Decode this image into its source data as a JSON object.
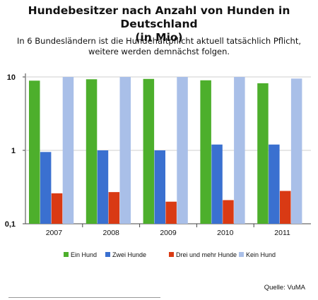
{
  "header": {
    "title_line1": "Hundebesitzer nach Anzahl von Hunden in Deutschland",
    "title_line2": "(in Mio)",
    "subtitle_line1": "In 6 Bundesländern ist die Hundehaftpflicht aktuell tatsächlich Pflicht,",
    "subtitle_line2": "weitere werden demnächst folgen."
  },
  "footer": {
    "source": "Quelle: VuMA"
  },
  "chart_data": {
    "type": "bar",
    "title": "Hundebesitzer nach Anzahl von Hunden in Deutschland (in Mio)",
    "categories": [
      "2007",
      "2008",
      "2009",
      "2010",
      "2011"
    ],
    "yscale": "log",
    "ylim": [
      0.1,
      10
    ],
    "yticks": [
      {
        "value": 10,
        "label": "10"
      },
      {
        "value": 1,
        "label": "1"
      },
      {
        "value": 0.1,
        "label": "0,1"
      }
    ],
    "grid": true,
    "legend": "bottom",
    "series": [
      {
        "name": "Ein Hund",
        "color": "#4daf2c",
        "values": [
          8.9,
          9.3,
          9.4,
          9.0,
          8.2
        ]
      },
      {
        "name": "Zwei Hunde",
        "color": "#3a70d0",
        "values": [
          0.95,
          1.0,
          1.0,
          1.2,
          1.2
        ]
      },
      {
        "name": "Drei und mehr Hunde",
        "color": "#d93a14",
        "values": [
          0.26,
          0.27,
          0.2,
          0.21,
          0.28
        ]
      },
      {
        "name": "Kein Hund",
        "color": "#a9bfe8",
        "values": [
          10,
          10,
          10,
          10,
          9.5
        ]
      }
    ]
  }
}
